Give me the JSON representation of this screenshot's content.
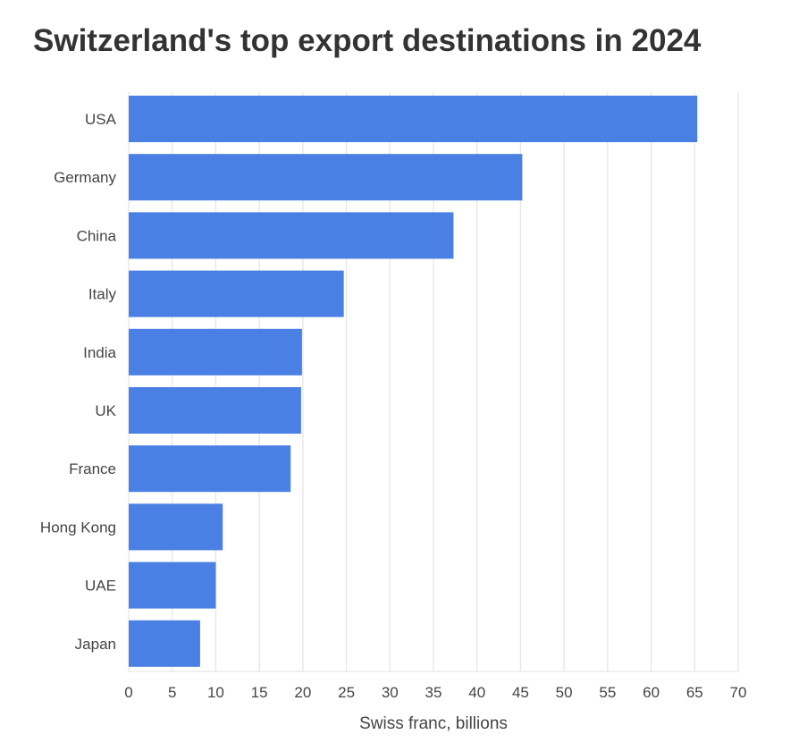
{
  "chart_data": {
    "type": "bar",
    "orientation": "horizontal",
    "title": "Switzerland's top export destinations in 2024",
    "xlabel": "Swiss franc, billions",
    "ylabel": "",
    "categories": [
      "USA",
      "Germany",
      "China",
      "Italy",
      "India",
      "UK",
      "France",
      "Hong Kong",
      "UAE",
      "Japan"
    ],
    "values": [
      65.3,
      45.2,
      37.3,
      24.7,
      19.9,
      19.8,
      18.6,
      10.8,
      10.0,
      8.2
    ],
    "xlim": [
      0,
      70
    ],
    "xticks": [
      0,
      5,
      10,
      15,
      20,
      25,
      30,
      35,
      40,
      45,
      50,
      55,
      60,
      65,
      70
    ],
    "grid": true,
    "legend": "none",
    "bar_color": "#4a7fe3",
    "grid_color": "#e6e6e6",
    "text_color": "#444444",
    "title_color": "#333333"
  }
}
